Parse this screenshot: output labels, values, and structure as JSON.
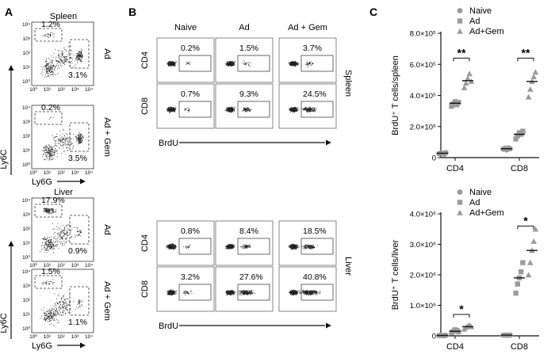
{
  "panels": {
    "a": {
      "letter": "A",
      "groups": [
        {
          "tissue": "Spleen",
          "plots": [
            {
              "condition": "Ad",
              "ly6c_pct": "1.2%",
              "ly6g_pct": "3.1%",
              "ly6c_density": "low",
              "ly6g_density": "high"
            },
            {
              "condition": "Ad + Gem",
              "ly6c_pct": "0.2%",
              "ly6g_pct": "3.5%",
              "ly6c_density": "none",
              "ly6g_density": "high"
            }
          ]
        },
        {
          "tissue": "Liver",
          "plots": [
            {
              "condition": "Ad",
              "ly6c_pct": "17.9%",
              "ly6g_pct": "0.9%",
              "ly6c_density": "high",
              "ly6g_density": "low"
            },
            {
              "condition": "Ad + Gem",
              "ly6c_pct": "1.5%",
              "ly6g_pct": "1.1%",
              "ly6c_density": "low",
              "ly6g_density": "low"
            }
          ]
        }
      ],
      "y_axis": "Ly6C",
      "x_axis": "Ly6G",
      "ticks": [
        "10⁰",
        "10¹",
        "10²",
        "10³",
        "10⁴"
      ]
    },
    "b": {
      "letter": "B",
      "columns": [
        "Naive",
        "Ad",
        "Ad + Gem"
      ],
      "x_axis": "BrdU",
      "blocks": [
        {
          "tissue": "Spleen",
          "rows": [
            {
              "label": "CD4",
              "values": [
                "0.2%",
                "1.5%",
                "3.7%"
              ]
            },
            {
              "label": "CD8",
              "values": [
                "0.7%",
                "9.3%",
                "24.5%"
              ]
            }
          ]
        },
        {
          "tissue": "Liver",
          "rows": [
            {
              "label": "CD4",
              "values": [
                "0.8%",
                "8.4%",
                "18.5%"
              ]
            },
            {
              "label": "CD8",
              "values": [
                "3.2%",
                "27.6%",
                "40.8%"
              ]
            }
          ]
        }
      ]
    },
    "c": {
      "letter": "C"
    }
  },
  "chart_data": [
    {
      "type": "scatter",
      "ylabel": "BrdU⁺ T cells/spleen",
      "ylim": [
        0,
        800000
      ],
      "yticks": [
        0,
        200000,
        400000,
        600000,
        800000
      ],
      "ytick_labels": [
        "0",
        "2.0×10⁵",
        "4.0×10⁵",
        "6.0×10⁵",
        "8.0×10⁵"
      ],
      "categories": [
        "CD4",
        "CD8"
      ],
      "legend": [
        "Naive",
        "Ad",
        "Ad+Gem"
      ],
      "legend_position": "top-right",
      "series": [
        {
          "name": "Naive",
          "marker": "circle",
          "values": [
            [
              25000,
              30000,
              28000,
              22000,
              32000
            ],
            [
              55000,
              60000,
              50000,
              62000,
              57000
            ]
          ],
          "means": [
            28000,
            57000
          ]
        },
        {
          "name": "Ad",
          "marker": "square",
          "values": [
            [
              330000,
              345000,
              360000,
              340000,
              355000
            ],
            [
              120000,
              140000,
              160000,
              150000,
              170000
            ]
          ],
          "means": [
            350000,
            150000
          ]
        },
        {
          "name": "Ad+Gem",
          "marker": "triangle",
          "values": [
            [
              450000,
              480000,
              510000,
              540000,
              490000
            ],
            [
              390000,
              440000,
              490000,
              520000,
              550000
            ]
          ],
          "means": [
            495000,
            490000
          ]
        }
      ],
      "significance": [
        {
          "category": "CD4",
          "label": "**",
          "y": 640000
        },
        {
          "category": "CD8",
          "label": "**",
          "y": 640000
        }
      ]
    },
    {
      "type": "scatter",
      "ylabel": "BrdU⁺ T cells/liver",
      "ylim": [
        0,
        4000000
      ],
      "yticks": [
        0,
        1000000,
        2000000,
        3000000,
        4000000
      ],
      "ytick_labels": [
        "0",
        "1.0×10⁶",
        "2.0×10⁶",
        "3.0×10⁶",
        "4.0×10⁶"
      ],
      "categories": [
        "CD4",
        "CD8"
      ],
      "legend": [
        "Naive",
        "Ad",
        "Ad+Gem"
      ],
      "legend_position": "top-right",
      "series": [
        {
          "name": "Naive",
          "marker": "circle",
          "values": [
            [
              10000,
              15000,
              12000,
              8000,
              14000
            ],
            [
              20000,
              25000,
              18000,
              22000,
              24000
            ]
          ],
          "means": [
            12000,
            22000
          ]
        },
        {
          "name": "Ad",
          "marker": "square",
          "values": [
            [
              100000,
              150000,
              200000,
              180000,
              130000
            ],
            [
              1400000,
              1700000,
              1900000,
              2100000,
              2400000
            ]
          ],
          "means": [
            150000,
            1900000
          ]
        },
        {
          "name": "Ad+Gem",
          "marker": "triangle",
          "values": [
            [
              220000,
              280000,
              320000,
              350000,
              300000
            ],
            [
              2000000,
              2400000,
              2800000,
              3100000,
              3500000
            ]
          ],
          "means": [
            300000,
            2800000
          ]
        }
      ],
      "significance": [
        {
          "category": "CD4",
          "label": "*",
          "y": 700000
        },
        {
          "category": "CD8",
          "label": "*",
          "y": 3600000
        }
      ]
    }
  ]
}
